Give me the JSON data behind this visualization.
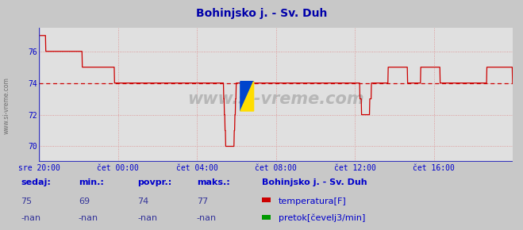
{
  "title": "Bohinjsko j. - Sv. Duh",
  "bg_color": "#c8c8c8",
  "plot_bg_color": "#e0e0e0",
  "line_color": "#cc0000",
  "grid_color": "#dd8888",
  "avg_line_color": "#cc0000",
  "avg_value": 74.0,
  "ylim": [
    69.0,
    77.5
  ],
  "yticks": [
    70,
    72,
    74,
    76
  ],
  "xtick_labels": [
    "sre 20:00",
    "čet 00:00",
    "čet 04:00",
    "čet 08:00",
    "čet 12:00",
    "čet 16:00"
  ],
  "xtick_positions": [
    0,
    240,
    480,
    720,
    960,
    1200
  ],
  "total_points": 1440,
  "stats_sedaj": "75",
  "stats_min": "69",
  "stats_povpr": "74",
  "stats_maks": "77",
  "stats_sedaj2": "-nan",
  "stats_min2": "-nan",
  "stats_povpr2": "-nan",
  "stats_maks2": "-nan",
  "station_name": "Bohinjsko j. - Sv. Duh",
  "legend1": "temperatura[F]",
  "legend2": "pretok[čevelj3/min]",
  "watermark": "www.si-vreme.com",
  "title_color": "#0000aa",
  "axis_color": "#0000cc",
  "stats_label_color": "#0000cc",
  "left_watermark": "www.si-vreme.com"
}
